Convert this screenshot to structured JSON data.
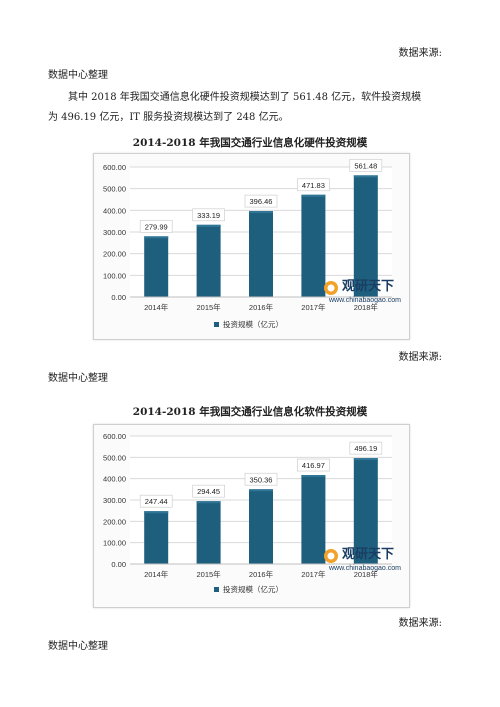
{
  "doc": {
    "source_label": "数据来源:",
    "source_org": "数据中心整理",
    "paragraph_line1": "其中 2018 年我国交通信息化硬件投资规模达到了 561.48 亿元，软件投资规模",
    "paragraph_line2": "为 496.19 亿元，IT 服务投资规模达到了 248 亿元。"
  },
  "watermark": {
    "brand": "观研天下",
    "url": "www.chinabaogao.com"
  },
  "colors": {
    "bar": "#1f5f7e",
    "bar_top": "#2f7696",
    "grid": "#d9d9d9"
  },
  "chart_data": [
    {
      "type": "bar",
      "title": "2014-2018 年我国交通行业信息化硬件投资规模",
      "categories": [
        "2014年",
        "2015年",
        "2016年",
        "2017年",
        "2018年"
      ],
      "series": [
        {
          "name": "投资规模（亿元）",
          "values": [
            279.99,
            333.19,
            396.46,
            471.83,
            561.48
          ]
        }
      ],
      "value_labels": [
        "279.99",
        "333.19",
        "396.46",
        "471.83",
        "561.48"
      ],
      "yticks": [
        "0.00",
        "100.00",
        "200.00",
        "300.00",
        "400.00",
        "500.00",
        "600.00"
      ],
      "ylim": [
        0,
        600
      ],
      "grid": true,
      "legend_position": "bottom"
    },
    {
      "type": "bar",
      "title": "2014-2018 年我国交通行业信息化软件投资规模",
      "categories": [
        "2014年",
        "2015年",
        "2016年",
        "2017年",
        "2018年"
      ],
      "series": [
        {
          "name": "投资规模（亿元）",
          "values": [
            247.44,
            294.45,
            350.36,
            416.97,
            496.19
          ]
        }
      ],
      "value_labels": [
        "247.44",
        "294.45",
        "350.36",
        "416.97",
        "496.19"
      ],
      "yticks": [
        "0.00",
        "100.00",
        "200.00",
        "300.00",
        "400.00",
        "500.00",
        "600.00"
      ],
      "ylim": [
        0,
        600
      ],
      "grid": true,
      "legend_position": "bottom"
    }
  ]
}
